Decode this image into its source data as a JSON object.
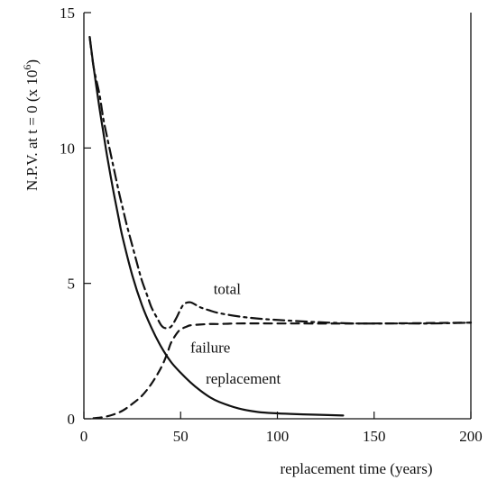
{
  "chart_data": {
    "type": "line",
    "title": "",
    "xlabel": "replacement time (years)",
    "ylabel_main": "N.P.V. at t = 0 (x 10",
    "ylabel_exp": "6",
    "ylabel_close": ")",
    "xlim": [
      0,
      200
    ],
    "ylim": [
      0,
      15
    ],
    "x_ticks": [
      0,
      50,
      100,
      150,
      200
    ],
    "x_tick_labels": [
      "0",
      "50",
      "100",
      "150",
      "200"
    ],
    "y_ticks": [
      0,
      5,
      10,
      15
    ],
    "y_tick_labels": [
      "0",
      "5",
      "10",
      "15"
    ],
    "grid": false,
    "series": [
      {
        "name": "total",
        "style": "dash-dot",
        "x": [
          3,
          5,
          8,
          10,
          12,
          15,
          18,
          20,
          22,
          25,
          28,
          30,
          33,
          35,
          38,
          40,
          42,
          45,
          48,
          50,
          52,
          55,
          58,
          60,
          65,
          70,
          80,
          90,
          100,
          120,
          140,
          160,
          180,
          200
        ],
        "y": [
          14.1,
          13.0,
          12.0,
          11.1,
          10.4,
          9.4,
          8.4,
          7.8,
          7.2,
          6.4,
          5.6,
          5.1,
          4.5,
          4.1,
          3.7,
          3.45,
          3.35,
          3.4,
          3.75,
          4.05,
          4.25,
          4.3,
          4.2,
          4.12,
          4.0,
          3.9,
          3.78,
          3.7,
          3.65,
          3.57,
          3.52,
          3.52,
          3.52,
          3.55
        ]
      },
      {
        "name": "failure",
        "style": "dashed",
        "x": [
          5,
          10,
          15,
          20,
          25,
          30,
          35,
          40,
          43,
          45,
          48,
          50,
          53,
          55,
          60,
          65,
          70,
          80,
          100,
          150,
          200
        ],
        "y": [
          0.02,
          0.06,
          0.15,
          0.3,
          0.55,
          0.85,
          1.3,
          1.9,
          2.4,
          2.8,
          3.15,
          3.3,
          3.4,
          3.45,
          3.48,
          3.5,
          3.5,
          3.52,
          3.52,
          3.52,
          3.55
        ]
      },
      {
        "name": "replacement",
        "style": "solid",
        "x": [
          3,
          5,
          8,
          10,
          12,
          15,
          18,
          20,
          25,
          30,
          35,
          40,
          45,
          50,
          55,
          60,
          65,
          70,
          80,
          90,
          100,
          110,
          120,
          134
        ],
        "y": [
          14.1,
          13.0,
          11.5,
          10.6,
          9.7,
          8.5,
          7.4,
          6.7,
          5.3,
          4.2,
          3.35,
          2.65,
          2.1,
          1.7,
          1.35,
          1.05,
          0.8,
          0.62,
          0.38,
          0.25,
          0.2,
          0.17,
          0.15,
          0.12
        ]
      }
    ],
    "annotations": [
      {
        "text": "total",
        "x": 67,
        "y": 4.6
      },
      {
        "text": "failure",
        "x": 55,
        "y": 2.45
      },
      {
        "text": "replacement",
        "x": 63,
        "y": 1.3
      }
    ]
  }
}
